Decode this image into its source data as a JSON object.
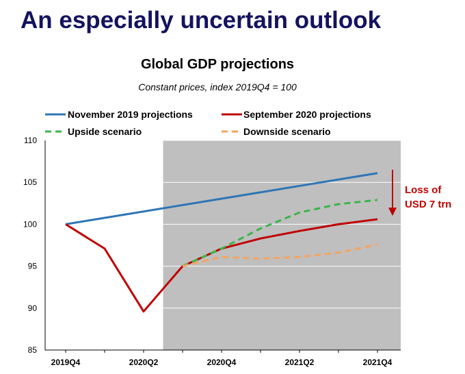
{
  "slide": {
    "title": "An especially uncertain outlook"
  },
  "chart_data": {
    "type": "line",
    "title": "Global GDP projections",
    "subtitle": "Constant prices, index 2019Q4 = 100",
    "ylim": [
      85,
      110
    ],
    "yticks": [
      85,
      90,
      95,
      100,
      105,
      110
    ],
    "x": [
      "2019Q4",
      "2020Q1",
      "2020Q2",
      "2020Q3",
      "2020Q4",
      "2021Q1",
      "2021Q2",
      "2021Q3",
      "2021Q4"
    ],
    "x_tick_labels": [
      "2019Q4",
      "2020Q2",
      "2020Q4",
      "2021Q2",
      "2021Q4"
    ],
    "shaded_region": {
      "from": "2020Q2",
      "to": "end",
      "color": "#bfbfbf"
    },
    "grid": true,
    "series": [
      {
        "name": "November 2019 projections",
        "color": "#2e75b6",
        "style": "solid",
        "x": [
          "2019Q4",
          "2021Q4"
        ],
        "values": [
          100,
          106.1
        ]
      },
      {
        "name": "September 2020 projections",
        "color": "#c00000",
        "style": "solid",
        "x": [
          "2019Q4",
          "2020Q1",
          "2020Q2",
          "2020Q3",
          "2020Q4",
          "2021Q1",
          "2021Q2",
          "2021Q3",
          "2021Q4"
        ],
        "values": [
          100,
          97.1,
          89.6,
          95.0,
          97.1,
          98.3,
          99.2,
          100.0,
          100.6
        ]
      },
      {
        "name": "Upside scenario",
        "color": "#3ab54a",
        "style": "dashed",
        "x": [
          "2020Q3",
          "2020Q4",
          "2021Q1",
          "2021Q2",
          "2021Q3",
          "2021Q4"
        ],
        "values": [
          95.0,
          97.1,
          99.5,
          101.4,
          102.4,
          102.9
        ]
      },
      {
        "name": "Downside scenario",
        "color": "#f4a460",
        "style": "dashed",
        "x": [
          "2020Q3",
          "2020Q4",
          "2021Q1",
          "2021Q2",
          "2021Q3",
          "2021Q4"
        ],
        "values": [
          95.0,
          96.1,
          95.9,
          96.1,
          96.6,
          97.6
        ]
      }
    ],
    "legend": {
      "placement": "top",
      "entries": [
        "November 2019 projections",
        "September 2020 projections",
        "Upside scenario",
        "Downside scenario"
      ]
    },
    "annotation": {
      "lines": [
        "Loss of",
        "USD 7 trn"
      ],
      "color": "#c00000",
      "arrow_from": 106.5,
      "arrow_to": 101
    }
  }
}
